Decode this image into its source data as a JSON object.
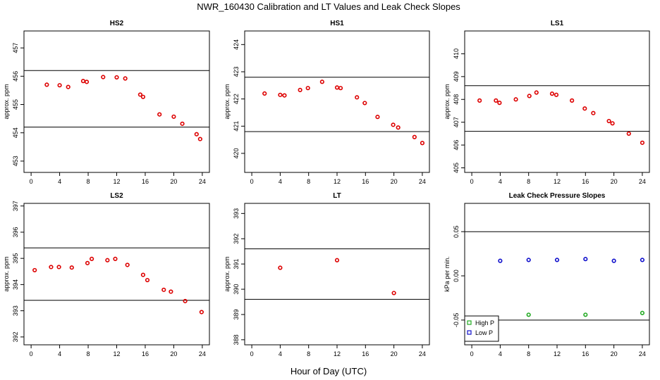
{
  "figure": {
    "title": "NWR_160430  Calibration and LT Values and Leak Check Slopes",
    "xlabel": "Hour of Day (UTC)"
  },
  "chart_data": [
    {
      "type": "scatter",
      "title": "HS2",
      "ylabel": "approx. ppm",
      "xlim": [
        -1,
        25
      ],
      "ylim": [
        452.6,
        457.6
      ],
      "xticks": [
        0,
        4,
        8,
        12,
        16,
        20,
        24
      ],
      "yticks": [
        453,
        454,
        455,
        456,
        457
      ],
      "hlines": [
        456.2,
        454.2
      ],
      "series": [
        {
          "color": "#dd0000",
          "marker": "circle",
          "x": [
            2.2,
            4,
            5.2,
            7.3,
            7.8,
            10.1,
            12,
            13.2,
            15.3,
            15.7,
            18,
            20,
            21.2,
            23.2,
            23.7
          ],
          "y": [
            455.7,
            455.68,
            455.62,
            455.83,
            455.8,
            455.97,
            455.96,
            455.92,
            455.35,
            455.27,
            454.65,
            454.57,
            454.32,
            453.95,
            453.78
          ]
        }
      ]
    },
    {
      "type": "scatter",
      "title": "HS1",
      "ylabel": "approx. ppm",
      "xlim": [
        -1,
        25
      ],
      "ylim": [
        419.3,
        424.5
      ],
      "xticks": [
        0,
        4,
        8,
        12,
        16,
        20,
        24
      ],
      "yticks": [
        420,
        421,
        422,
        423,
        424
      ],
      "hlines": [
        422.8,
        420.8
      ],
      "series": [
        {
          "color": "#dd0000",
          "marker": "circle",
          "x": [
            1.8,
            4,
            4.6,
            6.8,
            7.9,
            9.9,
            12,
            12.5,
            14.8,
            15.9,
            17.7,
            19.9,
            20.6,
            22.9,
            24
          ],
          "y": [
            422.2,
            422.15,
            422.13,
            422.33,
            422.4,
            422.63,
            422.42,
            422.4,
            422.06,
            421.85,
            421.34,
            421.05,
            420.95,
            420.6,
            420.38
          ]
        }
      ]
    },
    {
      "type": "scatter",
      "title": "LS1",
      "ylabel": "approx. ppm",
      "xlim": [
        -1,
        25
      ],
      "ylim": [
        404.8,
        411.0
      ],
      "xticks": [
        0,
        4,
        8,
        12,
        16,
        20,
        24
      ],
      "yticks": [
        405,
        406,
        407,
        408,
        409,
        410
      ],
      "hlines": [
        408.6,
        406.6
      ],
      "series": [
        {
          "color": "#dd0000",
          "marker": "circle",
          "x": [
            1.1,
            3.4,
            3.9,
            6.2,
            8.1,
            9.1,
            11.3,
            11.9,
            14.1,
            15.9,
            17.1,
            19.3,
            19.8,
            22.1,
            24
          ],
          "y": [
            407.95,
            407.95,
            407.85,
            408,
            408.15,
            408.3,
            408.25,
            408.2,
            407.95,
            407.6,
            407.4,
            407.05,
            406.95,
            406.5,
            406.1
          ]
        }
      ]
    },
    {
      "type": "scatter",
      "title": "LS2",
      "ylabel": "approx. ppm",
      "xlim": [
        -1,
        25
      ],
      "ylim": [
        391.7,
        397.1
      ],
      "xticks": [
        0,
        4,
        8,
        12,
        16,
        20,
        24
      ],
      "yticks": [
        392,
        393,
        394,
        395,
        396,
        397
      ],
      "hlines": [
        395.4,
        393.4
      ],
      "series": [
        {
          "color": "#dd0000",
          "marker": "circle",
          "x": [
            0.5,
            2.8,
            3.9,
            5.7,
            7.9,
            8.5,
            10.7,
            11.8,
            13.5,
            15.7,
            16.3,
            18.6,
            19.6,
            21.6,
            23.9
          ],
          "y": [
            394.55,
            394.67,
            394.67,
            394.65,
            394.82,
            394.98,
            394.93,
            394.98,
            394.75,
            394.37,
            394.17,
            393.8,
            393.73,
            393.37,
            392.95
          ]
        }
      ]
    },
    {
      "type": "scatter",
      "title": "LT",
      "ylabel": "approx. ppm",
      "xlim": [
        -1,
        25
      ],
      "ylim": [
        387.8,
        393.4
      ],
      "xticks": [
        0,
        4,
        8,
        12,
        16,
        20,
        24
      ],
      "yticks": [
        388,
        389,
        390,
        391,
        392,
        393
      ],
      "hlines": [
        391.6,
        389.6
      ],
      "series": [
        {
          "color": "#dd0000",
          "marker": "circle",
          "x": [
            4,
            12,
            20
          ],
          "y": [
            390.85,
            391.15,
            389.85
          ]
        }
      ]
    },
    {
      "type": "scatter",
      "title": "Leak Check Pressure Slopes",
      "ylabel": "kPa per min.",
      "xlim": [
        -1,
        25
      ],
      "ylim": [
        -0.078,
        0.082
      ],
      "xticks": [
        0,
        4,
        8,
        12,
        16,
        20,
        24
      ],
      "yticks": [
        -0.05,
        0.0,
        0.05
      ],
      "ytick_labels": [
        "-0.05",
        "0.00",
        "0.05"
      ],
      "hlines": [
        0.05,
        -0.05
      ],
      "legend_position": "bottom-left",
      "series": [
        {
          "name": "High P",
          "color": "#22aa22",
          "marker": "circle",
          "x": [
            8,
            16,
            24
          ],
          "y": [
            -0.044,
            -0.044,
            -0.042
          ]
        },
        {
          "name": "Low P",
          "color": "#1111cc",
          "marker": "circle",
          "x": [
            4,
            8,
            12,
            16,
            20,
            24
          ],
          "y": [
            0.017,
            0.018,
            0.018,
            0.019,
            0.017,
            0.018
          ]
        }
      ]
    }
  ]
}
